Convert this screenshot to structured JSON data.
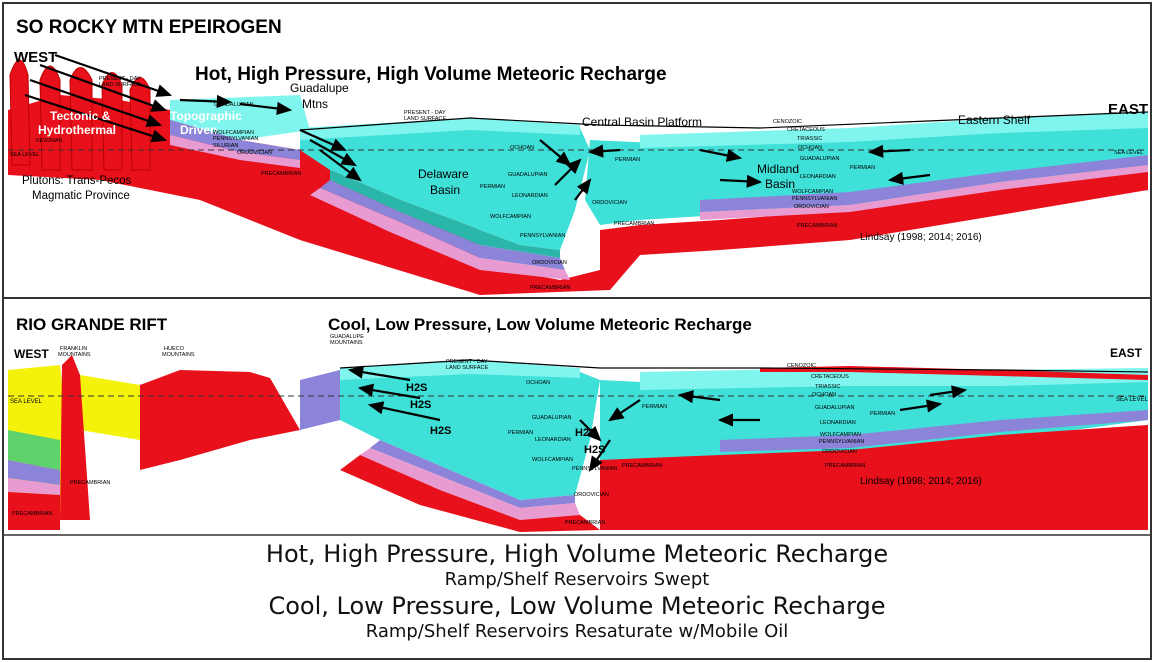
{
  "panel1": {
    "title": "SO ROCKY MTN EPEIROGEN",
    "headline": "Hot, High Pressure, High Volume Meteoric Recharge",
    "west": "WEST",
    "east": "EAST",
    "plutons": [
      "Plutons: Trans-Pecos",
      "Magmatic Province"
    ],
    "citation": "Lindsay (1998; 2014; 2016)",
    "labels": {
      "tectonic": [
        "Tectonic &",
        "Hydrothermal"
      ],
      "topographic": [
        "Topographic",
        "Driven"
      ],
      "guadalupe_mtns": [
        "Guadalupe",
        "Mtns"
      ],
      "central_basin_platform": "Central Basin Platform",
      "eastern_shelf": "Eastern Shelf",
      "delaware_basin": [
        "Delaware",
        "Basin"
      ],
      "midland_basin": [
        "Midland",
        "Basin"
      ],
      "present_day": [
        "PRESENT - DAY",
        "LAND SURFACE"
      ],
      "present_day_left": [
        "PRESENT - DAY",
        "LAND SURFACE"
      ],
      "sea_level": "SEA LEVEL",
      "cenozoic": "CENOZOIC",
      "cretaceous": "CRETACEOUS",
      "triassic": "TRIASSIC",
      "ochoan": "OCHOAN",
      "guadalupian": "GUADALUPIAN",
      "leonardian": "LEONARDIAN",
      "wolfcampian": "WOLFCAMPIAN",
      "pennsylvanian": "PENNSYLVANIAN",
      "ordovician": "ORDOVICIAN",
      "precambrian": "PRECAMBRIAN",
      "permian": "PERMIAN",
      "devonian": "DEVONIAN",
      "silurian": "SILURIAN"
    }
  },
  "panel2": {
    "title": "RIO GRANDE RIFT",
    "headline": "Cool, Low Pressure, Low Volume Meteoric Recharge",
    "west": "WEST",
    "east": "EAST",
    "citation": "Lindsay (1998; 2014; 2016)",
    "labels": {
      "franklin": [
        "FRANKLIN",
        "MOUNTAINS"
      ],
      "hueco": [
        "HUECO",
        "MOUNTAINS"
      ],
      "guadalupe": [
        "GUADALUPE",
        "MOUNTAINS"
      ],
      "present_day": [
        "PRESENT - DAY",
        "LAND SURFACE"
      ],
      "sea_level": "SEA LEVEL",
      "h2s": "H2S",
      "cenozoic": "CENOZOIC",
      "cretaceous": "CRETACEOUS",
      "triassic": "TRIASSIC",
      "ochoan": "OCHOAN",
      "guadalupian": "GUADALUPIAN",
      "leonardian": "LEONARDIAN",
      "wolfcampian": "WOLFCAMPIAN",
      "pennsylvanian": "PENNSYLVANIAN",
      "ordovician": "ORDOVICIAN",
      "precambrian": "PRECAMBRIAN",
      "permian": "PERMIAN"
    }
  },
  "caption": {
    "line1": "Hot, High Pressure, High Volume Meteoric Recharge",
    "line2": "Ramp/Shelf Reservoirs Swept",
    "line3": "Cool, Low Pressure, Low Volume Meteoric Recharge",
    "line4": "Ramp/Shelf Reservoirs Resaturate w/Mobile Oil"
  },
  "colors": {
    "precambrian": "#e8101a",
    "cyan_light": "#7ff5ee",
    "cyan": "#3fe0d8",
    "teal": "#2ab7a9",
    "blue_purple": "#8c84d8",
    "pink": "#e89bd1",
    "yellow": "#f4f20a",
    "green": "#5fd36b",
    "frame": "#333333"
  }
}
